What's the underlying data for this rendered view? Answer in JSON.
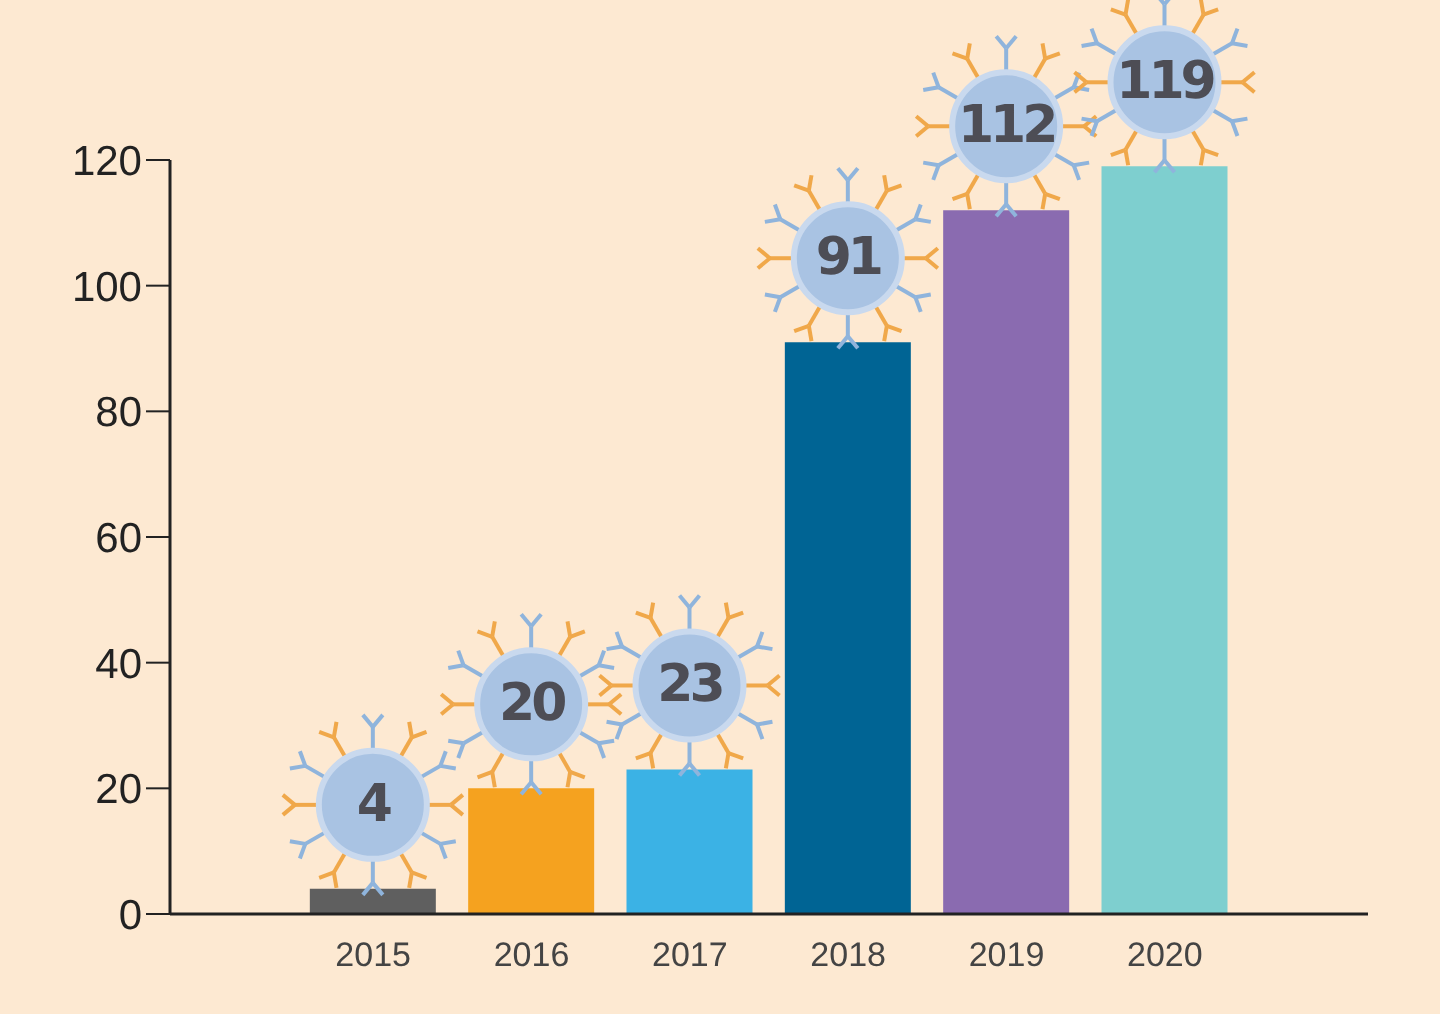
{
  "chart_data": {
    "type": "bar",
    "categories": [
      "2015",
      "2016",
      "2017",
      "2018",
      "2019",
      "2020"
    ],
    "values": [
      4,
      20,
      23,
      91,
      112,
      119
    ],
    "colors": [
      "#5f5f5f",
      "#f5a21f",
      "#3bb2e5",
      "#006494",
      "#8a6bb0",
      "#7ecfcf"
    ],
    "ylim": [
      0,
      120
    ],
    "yticks": [
      0,
      20,
      40,
      60,
      80,
      100,
      120
    ],
    "data_labels": true
  }
}
